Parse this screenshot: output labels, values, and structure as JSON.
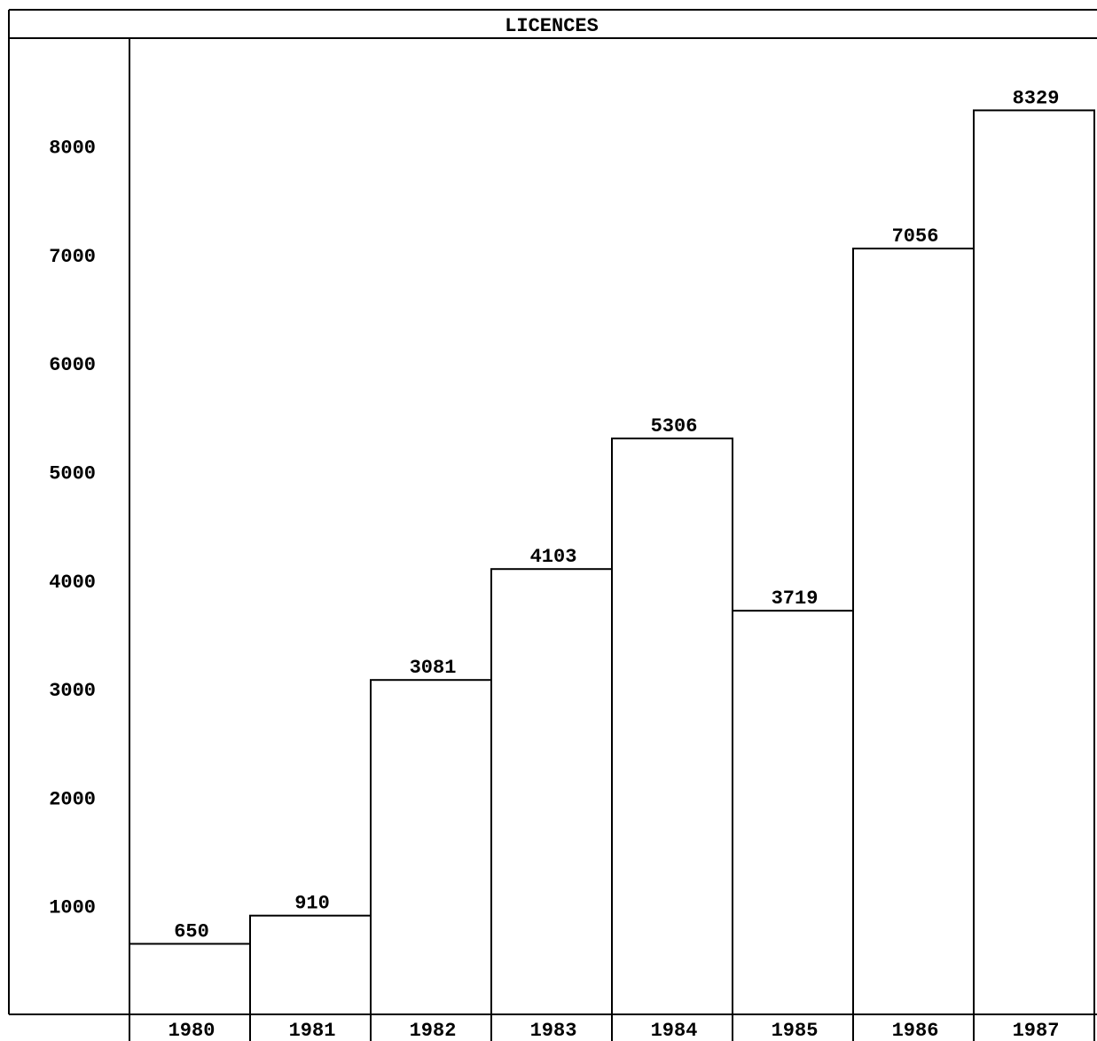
{
  "chart_data": {
    "type": "bar",
    "title": "LICENCES",
    "xlabel": "",
    "ylabel": "",
    "categories": [
      "1980",
      "1981",
      "1982",
      "1983",
      "1984",
      "1985",
      "1986",
      "1987"
    ],
    "values": [
      650,
      910,
      3081,
      4103,
      5306,
      3719,
      7056,
      8329
    ],
    "yticks": [
      "1000",
      "2000",
      "3000",
      "4000",
      "5000",
      "6000",
      "7000",
      "8000"
    ],
    "ylim": [
      0,
      8329
    ],
    "grid": false,
    "legend": "none",
    "bar_fill": "#ffffff",
    "stroke_color": "#000000"
  }
}
